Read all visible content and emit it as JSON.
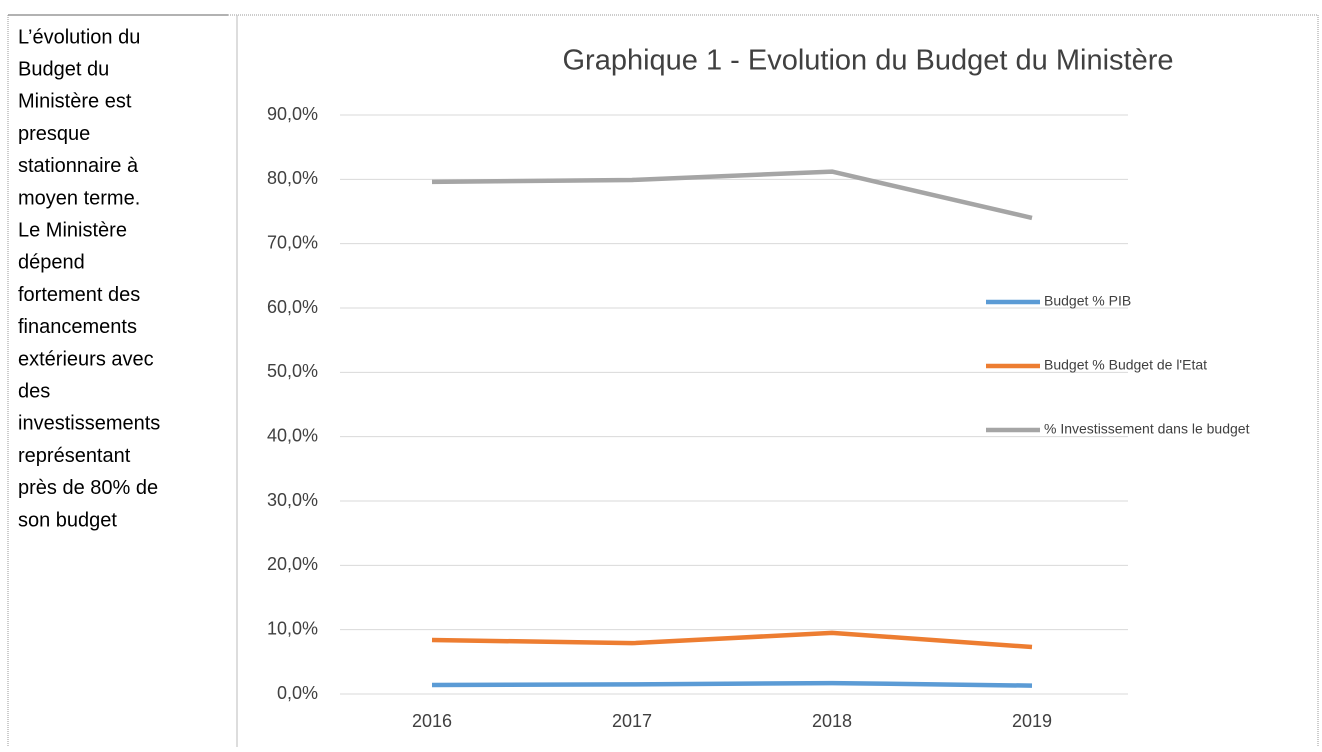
{
  "text_lines": [
    "L’évolution du",
    "Budget du",
    "Ministère est",
    "presque",
    "stationnaire à",
    "moyen terme.",
    "Le Ministère",
    "dépend",
    "fortement des",
    "financements",
    "extérieurs avec",
    "des",
    "investissements",
    "représentant",
    "près de 80% de",
    "son budget"
  ],
  "chart_data": {
    "type": "line",
    "title": "Graphique 1 - Evolution du Budget du Ministère",
    "categories": [
      "2016",
      "2017",
      "2018",
      "2019"
    ],
    "series": [
      {
        "name": "Budget % PIB",
        "color": "#5b9bd5",
        "values": [
          1.4,
          1.5,
          1.7,
          1.3
        ]
      },
      {
        "name": "Budget % Budget de l'Etat",
        "color": "#ed7d31",
        "values": [
          8.4,
          7.9,
          9.5,
          7.3
        ]
      },
      {
        "name": "% Investissement dans le budget",
        "color": "#a5a5a5",
        "values": [
          79.6,
          79.9,
          81.2,
          74.0
        ]
      }
    ],
    "ylim": [
      0,
      90
    ],
    "yticks": [
      {
        "value": 0,
        "label": "0,0%"
      },
      {
        "value": 10,
        "label": "10,0%"
      },
      {
        "value": 20,
        "label": "20,0%"
      },
      {
        "value": 30,
        "label": "30,0%"
      },
      {
        "value": 40,
        "label": "40,0%"
      },
      {
        "value": 50,
        "label": "50,0%"
      },
      {
        "value": 60,
        "label": "60,0%"
      },
      {
        "value": 70,
        "label": "70,0%"
      },
      {
        "value": 80,
        "label": "80,0%"
      },
      {
        "value": 90,
        "label": "90,0%"
      }
    ],
    "grid": true,
    "legend": "right"
  }
}
